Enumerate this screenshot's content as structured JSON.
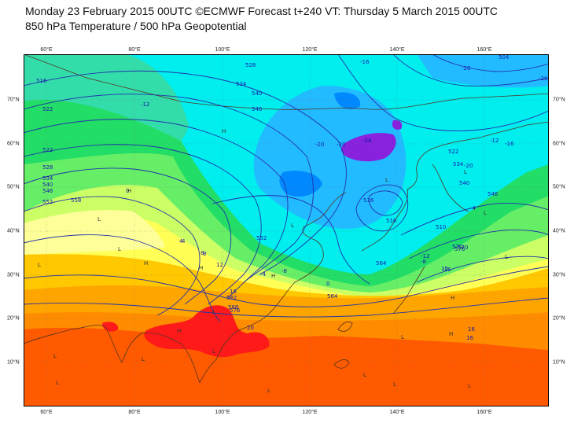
{
  "header": {
    "title_line1": "Monday 23 February 2015 00UTC ©ECMWF Forecast t+240 VT: Thursday 5 March 2015 00UTC",
    "title_line2": "850 hPa Temperature / 500 hPa Geopotential"
  },
  "map": {
    "longitude_ticks": [
      "60°E",
      "80°E",
      "100°E",
      "120°E",
      "140°E",
      "160°E"
    ],
    "latitude_ticks": [
      "70°N",
      "60°N",
      "50°N",
      "40°N",
      "30°N",
      "20°N",
      "10°N"
    ],
    "colors": {
      "hot_red": "#ff1a1a",
      "orange_red": "#ff5a00",
      "orange": "#ff8c00",
      "amber": "#ffa500",
      "gold": "#ffc800",
      "yellow": "#ffff55",
      "pale_yellow": "#ffff99",
      "yellow_green": "#ccff66",
      "light_green": "#66ee66",
      "green": "#22dd66",
      "sea_green": "#33ddaa",
      "cyan": "#00eeee",
      "sky_blue": "#22bbff",
      "blue": "#0088ff",
      "purple": "#8822dd",
      "contour_line": "#2233aa",
      "coastline": "#553322",
      "label_text": "#1a1aaa"
    },
    "contour_labels": [
      {
        "text": "-16"
      },
      {
        "text": "-20"
      },
      {
        "text": "-20"
      },
      {
        "text": "-20"
      },
      {
        "text": "-24"
      },
      {
        "text": "-20"
      },
      {
        "text": "-16"
      },
      {
        "text": "-12"
      },
      {
        "text": "-8"
      },
      {
        "text": "-4"
      },
      {
        "text": "0"
      },
      {
        "text": "0"
      },
      {
        "text": "4"
      },
      {
        "text": "8"
      },
      {
        "text": "12"
      },
      {
        "text": "16"
      },
      {
        "text": "20"
      },
      {
        "text": "16"
      },
      {
        "text": "16"
      },
      {
        "text": "12"
      },
      {
        "text": "-8"
      },
      {
        "text": "-12"
      },
      {
        "text": "-16"
      },
      {
        "text": "-12"
      },
      {
        "text": "8"
      },
      {
        "text": "4"
      },
      {
        "text": "-4"
      },
      {
        "text": "504"
      },
      {
        "text": "516"
      },
      {
        "text": "522"
      },
      {
        "text": "528"
      },
      {
        "text": "534"
      },
      {
        "text": "540"
      },
      {
        "text": "546"
      },
      {
        "text": "552"
      },
      {
        "text": "558"
      },
      {
        "text": "564"
      },
      {
        "text": "570"
      },
      {
        "text": "576"
      },
      {
        "text": "582"
      },
      {
        "text": "588"
      },
      {
        "text": "510"
      },
      {
        "text": "516"
      },
      {
        "text": "522"
      },
      {
        "text": "528"
      },
      {
        "text": "534"
      },
      {
        "text": "540"
      },
      {
        "text": "546"
      },
      {
        "text": "552"
      },
      {
        "text": "570"
      },
      {
        "text": "576"
      },
      {
        "text": "564"
      },
      {
        "text": "516"
      },
      {
        "text": "522"
      },
      {
        "text": "534"
      },
      {
        "text": "540"
      },
      {
        "text": "546"
      },
      {
        "text": "-20"
      },
      {
        "text": "-24"
      }
    ],
    "pressure_centers": [
      {
        "text": "H"
      },
      {
        "text": "H"
      },
      {
        "text": "H"
      },
      {
        "text": "H"
      },
      {
        "text": "H"
      },
      {
        "text": "H"
      },
      {
        "text": "L"
      },
      {
        "text": "L"
      },
      {
        "text": "L"
      },
      {
        "text": "L"
      },
      {
        "text": "L"
      },
      {
        "text": "L"
      },
      {
        "text": "L"
      },
      {
        "text": "L"
      },
      {
        "text": "L"
      },
      {
        "text": "L"
      },
      {
        "text": "L"
      },
      {
        "text": "L"
      },
      {
        "text": "L"
      },
      {
        "text": "L"
      },
      {
        "text": "L"
      },
      {
        "text": "L"
      },
      {
        "text": "H"
      },
      {
        "text": "H"
      },
      {
        "text": "L"
      },
      {
        "text": "L"
      }
    ]
  }
}
